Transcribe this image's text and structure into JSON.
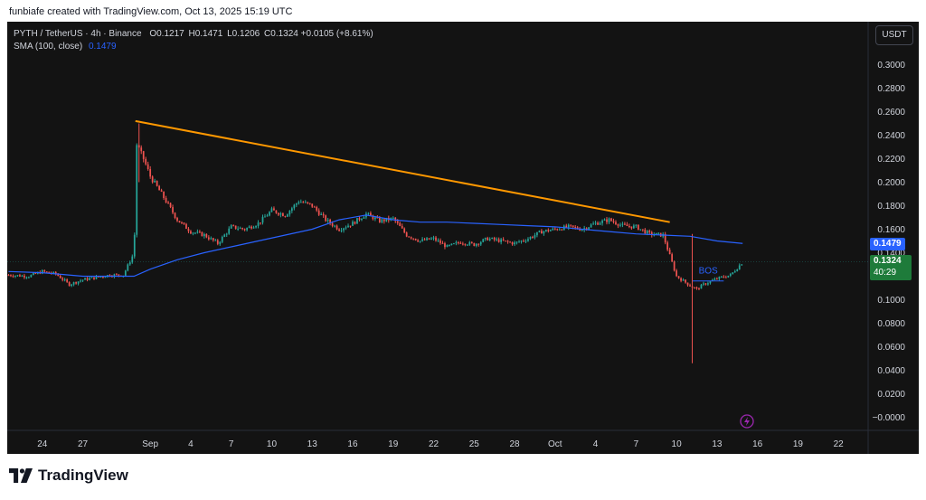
{
  "caption": "funbiafe created with TradingView.com, Oct 13, 2025 15:19 UTC",
  "legend": {
    "symbol": "PYTH / TetherUS · 4h · Binance",
    "open_label": "O",
    "open": "0.1217",
    "high_label": "H",
    "high": "0.1471",
    "low_label": "L",
    "low": "0.1206",
    "close_label": "C",
    "close": "0.1324",
    "change": "+0.0105 (+8.61%)",
    "sma_label": "SMA (100, close)",
    "sma_value": "0.1479"
  },
  "currency": "USDT",
  "footer_brand": "TradingView",
  "colors": {
    "up": "#26a69a",
    "down": "#ef5350",
    "sma": "#2962ff",
    "trendline": "#ff9800",
    "bos": "#2962ff",
    "bg": "#131313"
  },
  "price_labels": {
    "sma_tag": "0.1479",
    "close_tag": "0.1324",
    "countdown": "40:29"
  },
  "chart_data": {
    "type": "candlestick",
    "interval": "4h",
    "ylim": [
      -0.01,
      0.31
    ],
    "y_ticks": [
      "0.3000",
      "0.2800",
      "0.2600",
      "0.2400",
      "0.2200",
      "0.2000",
      "0.1800",
      "0.1600",
      "0.1400",
      "0.1200",
      "0.1000",
      "0.0800",
      "0.0600",
      "0.0400",
      "0.0200",
      "−0.0000"
    ],
    "y_tick_values": [
      0.3,
      0.28,
      0.26,
      0.24,
      0.22,
      0.2,
      0.18,
      0.16,
      0.14,
      0.12,
      0.1,
      0.08,
      0.06,
      0.04,
      0.02,
      0.0
    ],
    "x_ticks": [
      "24",
      "27",
      "Sep",
      "4",
      "7",
      "10",
      "13",
      "16",
      "19",
      "22",
      "25",
      "28",
      "Oct",
      "4",
      "7",
      "10",
      "13",
      "16",
      "19",
      "22"
    ],
    "x_tick_days": [
      0,
      3,
      8,
      11,
      14,
      17,
      20,
      23,
      26,
      29,
      32,
      35,
      38,
      41,
      44,
      47,
      50,
      53,
      56,
      59
    ],
    "x_range_days": [
      -2.6,
      61.2
    ],
    "close_path_days": [
      -2.5,
      -1,
      0,
      1,
      2,
      3,
      4,
      5,
      6,
      6.8,
      7,
      7.5,
      8,
      9,
      10,
      11,
      12,
      13,
      14,
      15,
      16,
      17,
      18,
      19,
      20,
      21,
      22,
      23,
      24,
      25,
      26,
      27,
      28,
      29,
      30,
      31,
      32,
      33,
      34,
      35,
      36,
      37,
      38,
      39,
      40,
      41,
      42,
      43,
      44,
      45,
      46,
      47,
      48,
      48.5,
      49,
      50,
      51,
      51.9
    ],
    "close_path": [
      0.121,
      0.12,
      0.124,
      0.122,
      0.113,
      0.117,
      0.119,
      0.121,
      0.121,
      0.14,
      0.232,
      0.22,
      0.205,
      0.187,
      0.168,
      0.158,
      0.155,
      0.148,
      0.162,
      0.16,
      0.165,
      0.176,
      0.172,
      0.184,
      0.18,
      0.168,
      0.16,
      0.165,
      0.173,
      0.167,
      0.169,
      0.155,
      0.15,
      0.152,
      0.145,
      0.149,
      0.147,
      0.152,
      0.15,
      0.148,
      0.152,
      0.158,
      0.16,
      0.162,
      0.16,
      0.165,
      0.168,
      0.163,
      0.162,
      0.156,
      0.155,
      0.12,
      0.112,
      0.109,
      0.113,
      0.118,
      0.121,
      0.132
    ],
    "special_wicks": [
      {
        "day": 7.2,
        "high": 0.25,
        "low": 0.2
      },
      {
        "day": 48.1,
        "high": 0.156,
        "low": 0.046
      }
    ],
    "sma": {
      "name": "SMA (100, close)",
      "days": [
        -2.5,
        0,
        3,
        5,
        6.8,
        8,
        10,
        12,
        14,
        16,
        18,
        20,
        22,
        24,
        26,
        28,
        30,
        32,
        34,
        36,
        38,
        40,
        42,
        44,
        46,
        48,
        50,
        51.9
      ],
      "values": [
        0.124,
        0.123,
        0.12,
        0.12,
        0.12,
        0.126,
        0.134,
        0.14,
        0.145,
        0.15,
        0.155,
        0.16,
        0.168,
        0.172,
        0.168,
        0.166,
        0.166,
        0.165,
        0.164,
        0.163,
        0.162,
        0.16,
        0.158,
        0.156,
        0.155,
        0.154,
        0.15,
        0.1479
      ]
    },
    "trendline": {
      "start_day": 6.9,
      "start_value": 0.252,
      "end_day": 46.5,
      "end_value": 0.166
    },
    "bos": {
      "label": "BOS",
      "from_day": 48.2,
      "to_day": 50.5,
      "value": 0.116
    },
    "last_price_line": 0.1324
  }
}
